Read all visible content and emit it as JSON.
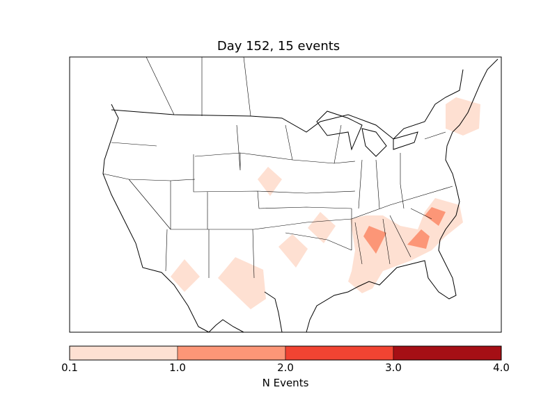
{
  "title": "Day 152, 15 events",
  "colorbar": {
    "label": "N Events",
    "ticks": [
      "0.1",
      "1.0",
      "2.0",
      "3.0",
      "4.0"
    ],
    "colors": [
      "#fee0d2",
      "#fc9677",
      "#f14432",
      "#a50f15"
    ]
  },
  "events": [
    {
      "region": "nebraska",
      "value": 0.5
    },
    {
      "region": "oklahoma",
      "value": 0.5
    },
    {
      "region": "arkansas",
      "value": 0.5
    },
    {
      "region": "arizona",
      "value": 0.5
    },
    {
      "region": "new-mexico-texas",
      "value": 0.5
    },
    {
      "region": "southeast",
      "value": 0.5
    },
    {
      "region": "new-england",
      "value": 0.5
    },
    {
      "region": "alabama",
      "value": 1.5
    },
    {
      "region": "georgia",
      "value": 1.5
    },
    {
      "region": "carolina",
      "value": 1.5
    }
  ]
}
